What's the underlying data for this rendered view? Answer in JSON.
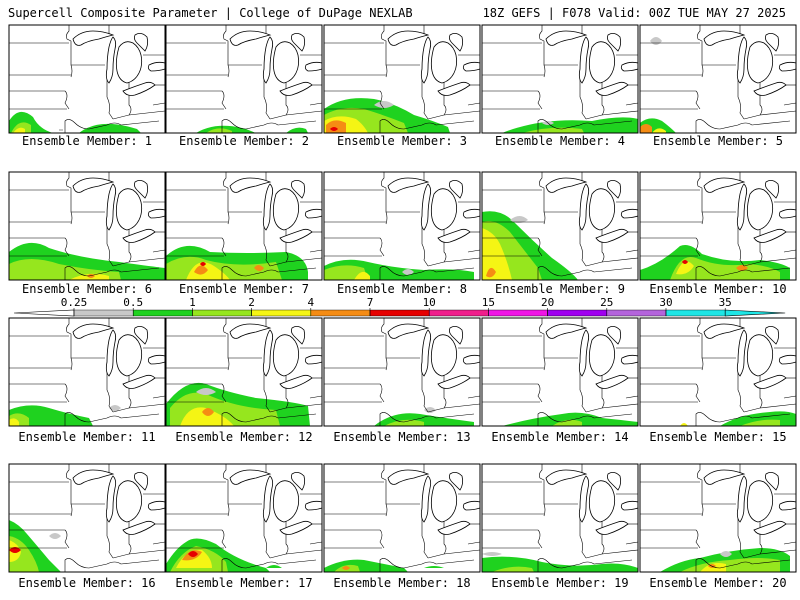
{
  "header": {
    "left": "Supercell Composite Parameter | College of DuPage NEXLAB",
    "right": "18Z GEFS | F078 Valid: 00Z TUE MAY 27 2025"
  },
  "caption_prefix": "Ensemble Member: ",
  "members": [
    {
      "number": 1,
      "label": "Ensemble Member: 1"
    },
    {
      "number": 2,
      "label": "Ensemble Member: 2"
    },
    {
      "number": 3,
      "label": "Ensemble Member: 3"
    },
    {
      "number": 4,
      "label": "Ensemble Member: 4"
    },
    {
      "number": 5,
      "label": "Ensemble Member: 5"
    },
    {
      "number": 6,
      "label": "Ensemble Member: 6"
    },
    {
      "number": 7,
      "label": "Ensemble Member: 7"
    },
    {
      "number": 8,
      "label": "Ensemble Member: 8"
    },
    {
      "number": 9,
      "label": "Ensemble Member: 9"
    },
    {
      "number": 10,
      "label": "Ensemble Member: 10"
    },
    {
      "number": 11,
      "label": "Ensemble Member: 11"
    },
    {
      "number": 12,
      "label": "Ensemble Member: 12"
    },
    {
      "number": 13,
      "label": "Ensemble Member: 13"
    },
    {
      "number": 14,
      "label": "Ensemble Member: 14"
    },
    {
      "number": 15,
      "label": "Ensemble Member: 15"
    },
    {
      "number": 16,
      "label": "Ensemble Member: 16"
    },
    {
      "number": 17,
      "label": "Ensemble Member: 17"
    },
    {
      "number": 18,
      "label": "Ensemble Member: 18"
    },
    {
      "number": 19,
      "label": "Ensemble Member: 19"
    },
    {
      "number": 20,
      "label": "Ensemble Member: 20"
    }
  ],
  "colorbar": {
    "labels": [
      "0.25",
      "0.5",
      "1",
      "2",
      "4",
      "7",
      "10",
      "15",
      "20",
      "25",
      "30",
      "35"
    ],
    "colors": [
      "#ffffff",
      "#c8c8c8",
      "#1fd21f",
      "#96e61e",
      "#f5f514",
      "#f58c14",
      "#e60000",
      "#f01e8c",
      "#f014e6",
      "#a000f0",
      "#b464dc",
      "#1ee6e6",
      "#1ee6e6"
    ]
  }
}
